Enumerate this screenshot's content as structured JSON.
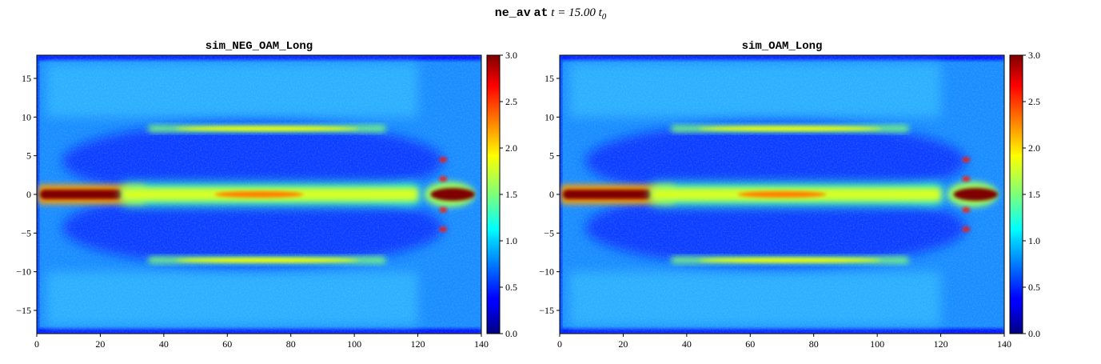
{
  "figure": {
    "suptitle_var": "ne_av",
    "suptitle_at": "at",
    "suptitle_time": "t = 15.00 t",
    "suptitle_sub": "0"
  },
  "colors": {
    "colormap": "jet",
    "background_blue": "#1a8cff",
    "core_red": "#800000"
  },
  "chart_data": [
    {
      "type": "heatmap",
      "title": "sim_NEG_OAM_Long",
      "xlim": [
        0,
        140
      ],
      "ylim": [
        -18,
        18
      ],
      "xticks": [
        0,
        20,
        40,
        60,
        80,
        100,
        120,
        140
      ],
      "yticks": [
        -15,
        -10,
        -5,
        0,
        5,
        10,
        15
      ],
      "colorbar": {
        "range": [
          0.0,
          3.0
        ],
        "ticks": [
          "0.0",
          "0.5",
          "1.0",
          "1.5",
          "2.0",
          "2.5",
          "3.0"
        ]
      },
      "features": [
        {
          "name": "on-axis dense core",
          "x": [
            1,
            27
          ],
          "y": 0,
          "value": 3.0
        },
        {
          "name": "on-axis channel",
          "x": [
            27,
            120
          ],
          "y": 0,
          "value": 1.8
        },
        {
          "name": "upper density ridge",
          "x": [
            35,
            110
          ],
          "y": 8.5,
          "value": 1.9
        },
        {
          "name": "lower density ridge",
          "x": [
            35,
            110
          ],
          "y": -8.5,
          "value": 1.9
        },
        {
          "name": "front hot spot",
          "x": [
            122,
            138
          ],
          "y": 0,
          "value": 3.0
        }
      ]
    },
    {
      "type": "heatmap",
      "title": "sim_OAM_Long",
      "xlim": [
        0,
        140
      ],
      "ylim": [
        -18,
        18
      ],
      "xticks": [
        0,
        20,
        40,
        60,
        80,
        100,
        120,
        140
      ],
      "yticks": [
        -15,
        -10,
        -5,
        0,
        5,
        10,
        15
      ],
      "colorbar": {
        "range": [
          0.0,
          3.0
        ],
        "ticks": [
          "0.0",
          "0.5",
          "1.0",
          "1.5",
          "2.0",
          "2.5",
          "3.0"
        ]
      },
      "features": [
        {
          "name": "on-axis dense core",
          "x": [
            1,
            29
          ],
          "y": 0,
          "value": 3.0
        },
        {
          "name": "on-axis channel",
          "x": [
            29,
            120
          ],
          "y": 0,
          "value": 1.8
        },
        {
          "name": "upper density ridge",
          "x": [
            35,
            110
          ],
          "y": 8.5,
          "value": 1.9
        },
        {
          "name": "lower density ridge",
          "x": [
            35,
            110
          ],
          "y": -8.5,
          "value": 1.9
        },
        {
          "name": "front hot spot",
          "x": [
            122,
            138
          ],
          "y": 0,
          "value": 3.0
        }
      ]
    }
  ]
}
